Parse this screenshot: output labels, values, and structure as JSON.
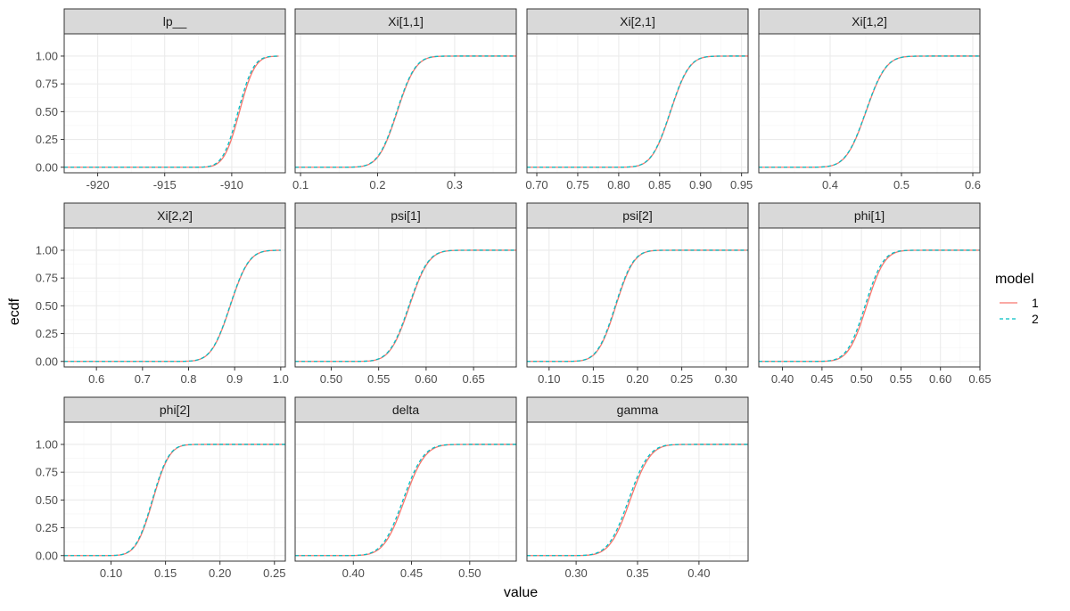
{
  "figure": {
    "xlabel": "value",
    "ylabel": "ecdf",
    "legend": {
      "title": "model",
      "position": "right",
      "entries": [
        "1",
        "2"
      ]
    }
  },
  "style": {
    "series_colors": [
      "#F8766D",
      "#00BFC4"
    ],
    "strip_fill": "#D9D9D9",
    "panel_border": "#333333",
    "grid_major": "#EBEBEB",
    "grid_minor": "#F4F4F4"
  },
  "chart_data": {
    "type": "line",
    "grid": true,
    "y_shared": {
      "ylim": [
        -0.05,
        1.2
      ],
      "ticks": [
        0,
        0.25,
        0.5,
        0.75,
        1
      ],
      "tick_labels": [
        "0.00",
        "0.25",
        "0.50",
        "0.75",
        "1.00"
      ]
    },
    "series_names": [
      "1",
      "2"
    ],
    "panels": [
      {
        "title": "lp__",
        "xlim": [
          -922.5,
          -906
        ],
        "ticks": [
          -920,
          -915,
          -910
        ],
        "tick_labels": [
          "-920",
          "-915",
          "-910"
        ],
        "xmin": -922.5,
        "xmax": -906.5,
        "mu": -909.5,
        "s": 0.9,
        "shift": 0.08
      },
      {
        "title": "Xi[1,1]",
        "xlim": [
          0.093,
          0.38
        ],
        "ticks": [
          0.1,
          0.2,
          0.3
        ],
        "tick_labels": [
          "0.1",
          "0.2",
          "0.3"
        ],
        "xmin": 0.093,
        "xmax": 0.38,
        "mu": 0.225,
        "s": 0.019,
        "shift": 0.0005
      },
      {
        "title": "Xi[2,1]",
        "xlim": [
          0.688,
          0.958
        ],
        "ticks": [
          0.7,
          0.75,
          0.8,
          0.85,
          0.9,
          0.95
        ],
        "tick_labels": [
          "0.70",
          "0.75",
          "0.80",
          "0.85",
          "0.90",
          "0.95"
        ],
        "xmin": 0.688,
        "xmax": 0.958,
        "mu": 0.863,
        "s": 0.018,
        "shift": 0.0003
      },
      {
        "title": "Xi[1,2]",
        "xlim": [
          0.3,
          0.61
        ],
        "ticks": [
          0.4,
          0.5,
          0.6
        ],
        "tick_labels": [
          "0.4",
          "0.5",
          "0.6"
        ],
        "xmin": 0.3,
        "xmax": 0.61,
        "mu": 0.45,
        "s": 0.022,
        "shift": 0.0003
      },
      {
        "title": "Xi[2,2]",
        "xlim": [
          0.53,
          1.01
        ],
        "ticks": [
          0.6,
          0.7,
          0.8,
          0.9,
          1.0
        ],
        "tick_labels": [
          "0.6",
          "0.7",
          "0.8",
          "0.9",
          "1.0"
        ],
        "xmin": 0.53,
        "xmax": 1.0,
        "mu": 0.89,
        "s": 0.032,
        "shift": 0.0005
      },
      {
        "title": "psi[1]",
        "xlim": [
          0.462,
          0.695
        ],
        "ticks": [
          0.5,
          0.55,
          0.6,
          0.65
        ],
        "tick_labels": [
          "0.50",
          "0.55",
          "0.60",
          "0.65"
        ],
        "xmin": 0.462,
        "xmax": 0.695,
        "mu": 0.582,
        "s": 0.016,
        "shift": 0.0005
      },
      {
        "title": "psi[2]",
        "xlim": [
          0.075,
          0.325
        ],
        "ticks": [
          0.1,
          0.15,
          0.2,
          0.25,
          0.3
        ],
        "tick_labels": [
          "0.10",
          "0.15",
          "0.20",
          "0.25",
          "0.30"
        ],
        "xmin": 0.075,
        "xmax": 0.325,
        "mu": 0.175,
        "s": 0.016,
        "shift": 0.0005
      },
      {
        "title": "phi[1]",
        "xlim": [
          0.37,
          0.65
        ],
        "ticks": [
          0.4,
          0.45,
          0.5,
          0.55,
          0.6,
          0.65
        ],
        "tick_labels": [
          "0.40",
          "0.45",
          "0.50",
          "0.55",
          "0.60",
          "0.65"
        ],
        "xmin": 0.37,
        "xmax": 0.65,
        "mu": 0.505,
        "s": 0.018,
        "shift": 0.0015
      },
      {
        "title": "phi[2]",
        "xlim": [
          0.057,
          0.26
        ],
        "ticks": [
          0.1,
          0.15,
          0.2,
          0.25
        ],
        "tick_labels": [
          "0.10",
          "0.15",
          "0.20",
          "0.25"
        ],
        "xmin": 0.057,
        "xmax": 0.26,
        "mu": 0.138,
        "s": 0.012,
        "shift": 0.0004
      },
      {
        "title": "delta",
        "xlim": [
          0.35,
          0.54
        ],
        "ticks": [
          0.4,
          0.45,
          0.5
        ],
        "tick_labels": [
          "0.40",
          "0.45",
          "0.50"
        ],
        "xmin": 0.35,
        "xmax": 0.54,
        "mu": 0.443,
        "s": 0.014,
        "shift": 0.001
      },
      {
        "title": "gamma",
        "xlim": [
          0.26,
          0.44
        ],
        "ticks": [
          0.3,
          0.35,
          0.4
        ],
        "tick_labels": [
          "0.30",
          "0.35",
          "0.40"
        ],
        "xmin": 0.26,
        "xmax": 0.44,
        "mu": 0.343,
        "s": 0.013,
        "shift": 0.001
      }
    ]
  }
}
